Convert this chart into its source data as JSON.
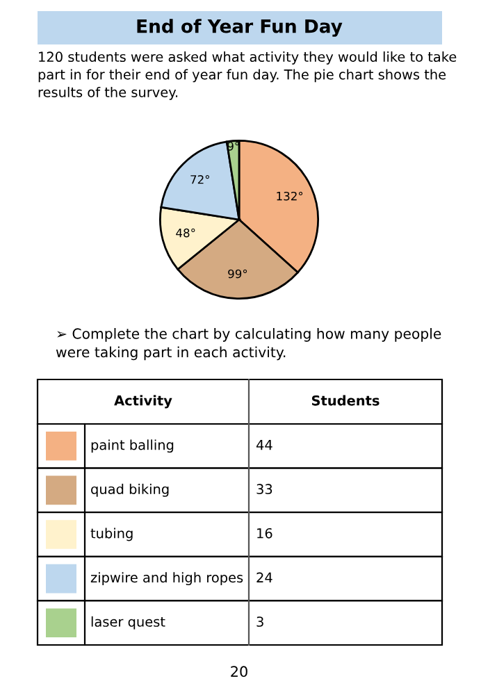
{
  "chart_data": {
    "type": "pie",
    "title": "End of Year Fun Day",
    "categories": [
      "paint balling",
      "quad biking",
      "tubing",
      "zipwire and high ropes",
      "laser quest"
    ],
    "values": [
      132,
      99,
      48,
      72,
      9
    ],
    "colors": [
      "#f4b183",
      "#d4aa82",
      "#fff2cc",
      "#bdd7ee",
      "#a9d18e"
    ],
    "legend": "bottom left",
    "value_labels": [
      "132°",
      "99°",
      "48°",
      "72°",
      "9°"
    ],
    "annotations": [
      "120 students were asked what activity they would like to take part in for their end of year fun day. The pie chart shows the results of the survey.",
      "➢ Complete the chart by calculating how many people were taking part in each activity.",
      "Activity",
      "Students",
      "44",
      "33",
      "16",
      "24",
      "3",
      "20"
    ]
  }
}
